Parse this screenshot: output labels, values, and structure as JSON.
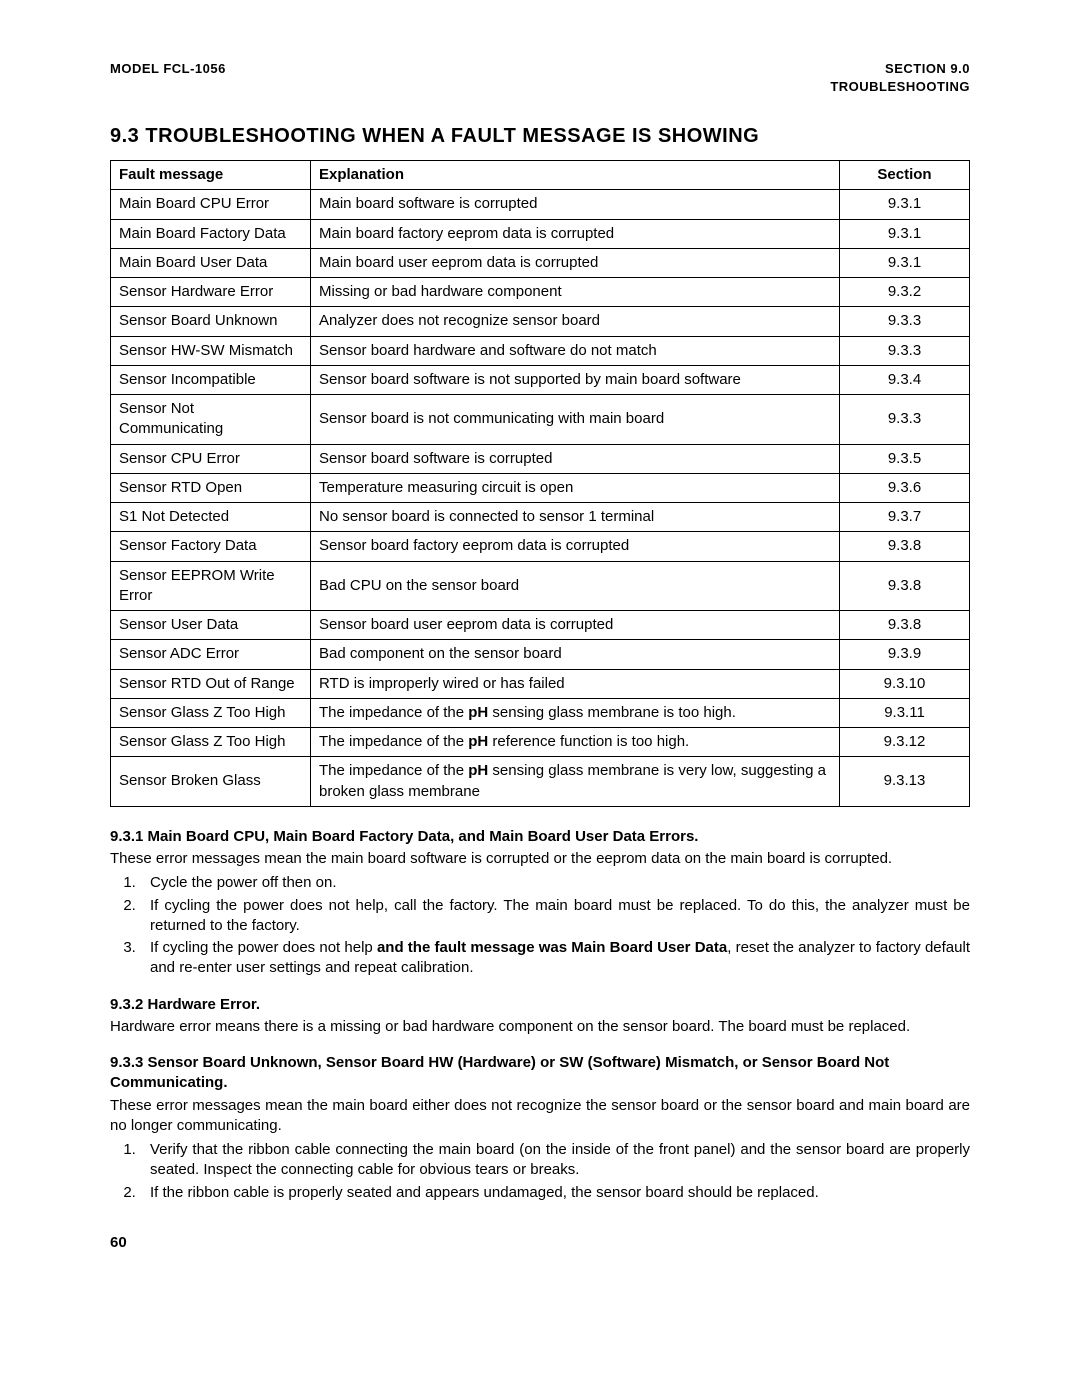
{
  "header": {
    "left": "MODEL FCL-1056",
    "right1": "SECTION 9.0",
    "right2": "TROUBLESHOOTING"
  },
  "title": "9.3 TROUBLESHOOTING WHEN A FAULT MESSAGE IS SHOWING",
  "table": {
    "columns": [
      "Fault message",
      "Explanation",
      "Section"
    ],
    "rows": [
      {
        "fault": "Main Board CPU Error",
        "explanation": [
          {
            "t": "Main board software is corrupted"
          }
        ],
        "section": "9.3.1"
      },
      {
        "fault": "Main Board Factory Data",
        "explanation": [
          {
            "t": "Main board factory eeprom data is corrupted"
          }
        ],
        "section": "9.3.1"
      },
      {
        "fault": "Main Board User Data",
        "explanation": [
          {
            "t": "Main board user eeprom data is corrupted"
          }
        ],
        "section": "9.3.1"
      },
      {
        "fault": "Sensor Hardware Error",
        "explanation": [
          {
            "t": "Missing or bad hardware component"
          }
        ],
        "section": "9.3.2"
      },
      {
        "fault": "Sensor Board Unknown",
        "explanation": [
          {
            "t": "Analyzer does not recognize sensor board"
          }
        ],
        "section": "9.3.3"
      },
      {
        "fault": "Sensor HW-SW Mismatch",
        "explanation": [
          {
            "t": "Sensor board hardware and software do not match"
          }
        ],
        "section": "9.3.3"
      },
      {
        "fault": "Sensor Incompatible",
        "explanation": [
          {
            "t": "Sensor board software is not supported by main board software"
          }
        ],
        "section": "9.3.4"
      },
      {
        "fault": "Sensor Not Communicating",
        "explanation": [
          {
            "t": "Sensor board is not communicating with main board"
          }
        ],
        "section": "9.3.3"
      },
      {
        "fault": "Sensor CPU Error",
        "explanation": [
          {
            "t": "Sensor board software is corrupted"
          }
        ],
        "section": "9.3.5"
      },
      {
        "fault": "Sensor RTD Open",
        "explanation": [
          {
            "t": "Temperature measuring circuit is open"
          }
        ],
        "section": "9.3.6"
      },
      {
        "fault": "S1 Not Detected",
        "explanation": [
          {
            "t": "No sensor board is connected to sensor 1 terminal"
          }
        ],
        "section": "9.3.7"
      },
      {
        "fault": "Sensor Factory Data",
        "explanation": [
          {
            "t": "Sensor board factory eeprom data is corrupted"
          }
        ],
        "section": "9.3.8"
      },
      {
        "fault": "Sensor EEPROM Write Error",
        "explanation": [
          {
            "t": "Bad CPU on the sensor board"
          }
        ],
        "section": "9.3.8"
      },
      {
        "fault": "Sensor User Data",
        "explanation": [
          {
            "t": "Sensor board user eeprom data is corrupted"
          }
        ],
        "section": "9.3.8"
      },
      {
        "fault": "Sensor ADC Error",
        "explanation": [
          {
            "t": "Bad component on the sensor board"
          }
        ],
        "section": "9.3.9"
      },
      {
        "fault": "Sensor RTD Out of Range",
        "explanation": [
          {
            "t": "RTD is improperly wired or has failed"
          }
        ],
        "section": "9.3.10"
      },
      {
        "fault": "Sensor Glass Z Too High",
        "explanation": [
          {
            "t": "The impedance of the "
          },
          {
            "t": "pH",
            "b": true
          },
          {
            "t": " sensing glass membrane is too high."
          }
        ],
        "section": "9.3.11"
      },
      {
        "fault": "Sensor Glass Z Too High",
        "explanation": [
          {
            "t": "The impedance of the "
          },
          {
            "t": "pH",
            "b": true
          },
          {
            "t": " reference function is too high."
          }
        ],
        "section": "9.3.12"
      },
      {
        "fault": "Sensor Broken Glass",
        "explanation": [
          {
            "t": "The impedance of the "
          },
          {
            "t": "pH",
            "b": true
          },
          {
            "t": " sensing glass membrane is very low, suggesting a broken glass membrane"
          }
        ],
        "section": "9.3.13"
      }
    ]
  },
  "s931": {
    "title": "9.3.1 Main Board CPU, Main Board Factory Data, and Main Board User Data Errors.",
    "intro": "These error messages mean the main board software is corrupted or the eeprom data on the main board is corrupted.",
    "items": [
      [
        {
          "t": "Cycle the power off then on."
        }
      ],
      [
        {
          "t": "If cycling the power does not help, call the factory. The main board must be replaced. To do this, the analyzer must be returned to the factory."
        }
      ],
      [
        {
          "t": "If cycling the power does not help "
        },
        {
          "t": "and the fault message was Main Board User Data",
          "b": true
        },
        {
          "t": ", reset the analyzer to factory default and re-enter user settings and repeat calibration."
        }
      ]
    ]
  },
  "s932": {
    "title": "9.3.2 Hardware Error.",
    "body": "Hardware error means there is a missing or bad hardware component on the sensor board. The board must be replaced."
  },
  "s933": {
    "title": "9.3.3 Sensor Board Unknown, Sensor Board HW (Hardware) or SW (Software) Mismatch, or Sensor Board Not Communicating.",
    "intro": "These error messages mean the main board either does not recognize the sensor board or the sensor board and main board are no longer communicating.",
    "items": [
      [
        {
          "t": "Verify that the ribbon cable connecting the main board (on the inside of the front panel) and the sensor board are properly seated. Inspect the connecting cable for obvious tears or breaks."
        }
      ],
      [
        {
          "t": "If the ribbon cable is properly seated and appears undamaged, the sensor board should be replaced."
        }
      ]
    ]
  },
  "pageNumber": "60"
}
